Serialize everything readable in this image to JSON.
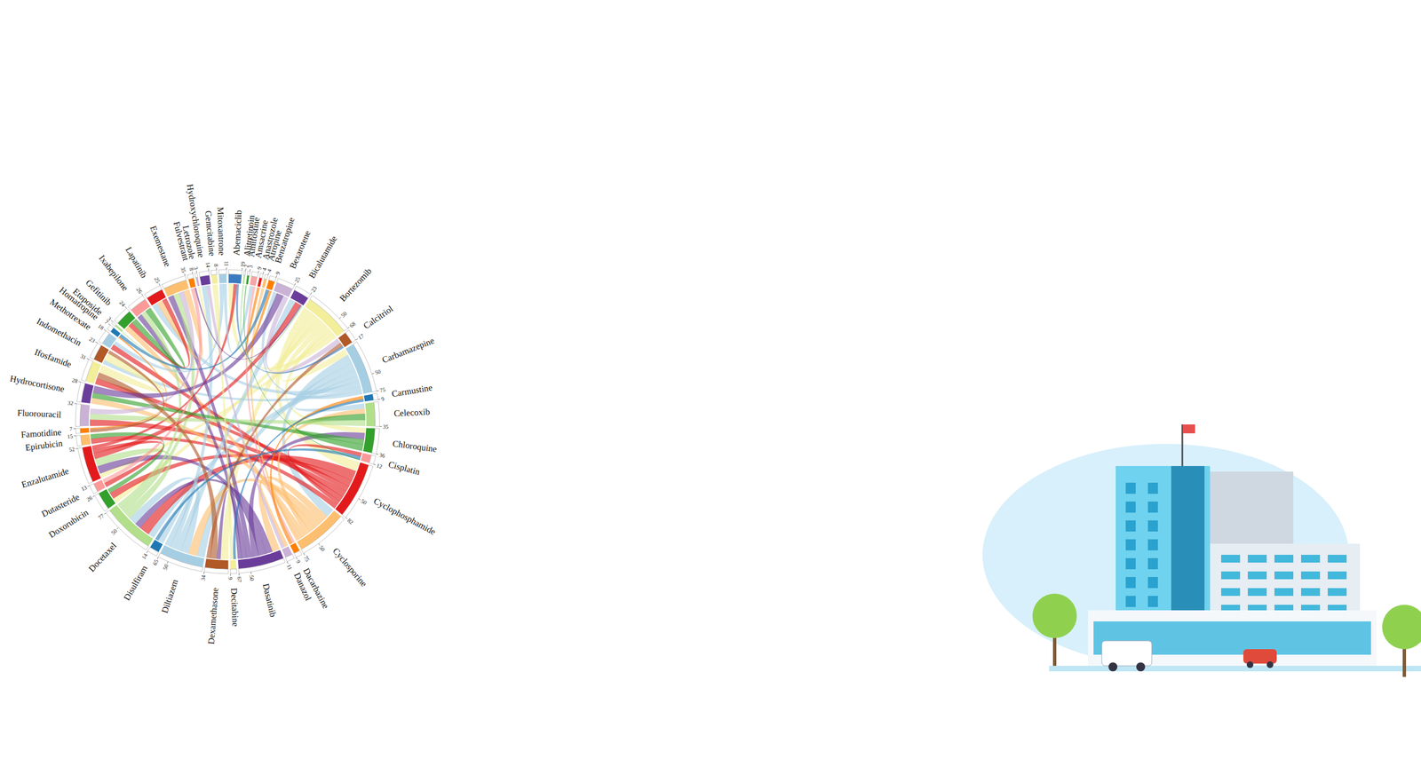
{
  "chart_data": {
    "type": "chord",
    "groups": [
      {
        "name": "Abemaciclib",
        "value": 19,
        "color": "#3a7bc0",
        "ticks": [
          19
        ]
      },
      {
        "name": "Alitretinoin",
        "value": 2,
        "color": "#b0dc9c",
        "ticks": [
          2
        ]
      },
      {
        "name": "Amifostine",
        "value": 3,
        "color": "#33a02c",
        "ticks": [
          3
        ]
      },
      {
        "name": "Amsacrine",
        "value": 9,
        "color": "#f4a6a6",
        "ticks": [
          9
        ]
      },
      {
        "name": "Anastrozole",
        "value": 4,
        "color": "#e31a1c",
        "ticks": [
          4
        ]
      },
      {
        "name": "Atropine",
        "value": 4,
        "color": "#fdbf6f",
        "ticks": [
          4
        ]
      },
      {
        "name": "Benzatropine",
        "value": 9,
        "color": "#ff7f00",
        "ticks": [
          9
        ]
      },
      {
        "name": "Bexarotene",
        "value": 25,
        "color": "#cab2d6",
        "ticks": [
          25
        ]
      },
      {
        "name": "Bicalutamide",
        "value": 23,
        "color": "#6a3d9a",
        "ticks": [
          23
        ]
      },
      {
        "name": "Bortezomib",
        "value": 68,
        "color": "#f2ee9a",
        "ticks": [
          50,
          68
        ]
      },
      {
        "name": "Calcitriol",
        "value": 17,
        "color": "#b15928",
        "ticks": [
          17
        ]
      },
      {
        "name": "Carbamazepine",
        "value": 75,
        "color": "#a6cee3",
        "ticks": [
          50,
          75
        ]
      },
      {
        "name": "Carmustine",
        "value": 9,
        "color": "#1f78b4",
        "ticks": [
          9
        ]
      },
      {
        "name": "Celecoxib",
        "value": 35,
        "color": "#b2df8a",
        "ticks": [
          35
        ]
      },
      {
        "name": "Chloroquine",
        "value": 36,
        "color": "#33a02c",
        "ticks": [
          36
        ]
      },
      {
        "name": "Cisplatin",
        "value": 12,
        "color": "#fb9a99",
        "ticks": [
          12
        ]
      },
      {
        "name": "Cyclophosphamide",
        "value": 82,
        "color": "#e31a1c",
        "ticks": [
          50,
          82
        ]
      },
      {
        "name": "Cyclosporine",
        "value": 75,
        "color": "#fdbf6f",
        "ticks": [
          50,
          75
        ]
      },
      {
        "name": "Dacarbazine",
        "value": 9,
        "color": "#ff7f00",
        "ticks": [
          9
        ]
      },
      {
        "name": "Danazol",
        "value": 11,
        "color": "#cab2d6",
        "ticks": [
          11
        ]
      },
      {
        "name": "Dasatinib",
        "value": 67,
        "color": "#6a3d9a",
        "ticks": [
          50,
          67
        ]
      },
      {
        "name": "Decitabine",
        "value": 9,
        "color": "#f2ee9a",
        "ticks": [
          9
        ]
      },
      {
        "name": "Dexamethasone",
        "value": 34,
        "color": "#b15928",
        "ticks": [
          34
        ]
      },
      {
        "name": "Diltiazem",
        "value": 65,
        "color": "#a6cee3",
        "ticks": [
          50,
          65
        ]
      },
      {
        "name": "Disulfiram",
        "value": 14,
        "color": "#1f78b4",
        "ticks": [
          14
        ]
      },
      {
        "name": "Docetaxel",
        "value": 77,
        "color": "#b2df8a",
        "ticks": [
          50,
          77
        ]
      },
      {
        "name": "Doxorubicin",
        "value": 26,
        "color": "#33a02c",
        "ticks": [
          26
        ]
      },
      {
        "name": "Dutasteride",
        "value": 13,
        "color": "#fb9a99",
        "ticks": [
          13
        ]
      },
      {
        "name": "Enzalutamide",
        "value": 52,
        "color": "#e31a1c",
        "ticks": [
          52
        ]
      },
      {
        "name": "Epirubicin",
        "value": 15,
        "color": "#fdbf6f",
        "ticks": [
          15
        ]
      },
      {
        "name": "Famotidine",
        "value": 7,
        "color": "#ff7f00",
        "ticks": [
          7
        ]
      },
      {
        "name": "Fluorouracil",
        "value": 32,
        "color": "#cab2d6",
        "ticks": [
          32
        ]
      },
      {
        "name": "Hydrocortisone",
        "value": 28,
        "color": "#6a3d9a",
        "ticks": [
          28
        ]
      },
      {
        "name": "Ifosfamide",
        "value": 31,
        "color": "#f2ee9a",
        "ticks": [
          31
        ]
      },
      {
        "name": "Indomethacin",
        "value": 23,
        "color": "#b15928",
        "ticks": [
          23
        ]
      },
      {
        "name": "Methotrexate",
        "value": 18,
        "color": "#a6cee3",
        "ticks": [
          18
        ]
      },
      {
        "name": "Homatropine",
        "value": 7,
        "color": "#1f78b4",
        "ticks": [
          7
        ]
      },
      {
        "name": "Etoposide",
        "value": 3,
        "color": "#b2df8a",
        "ticks": [
          3
        ]
      },
      {
        "name": "Gefitinib",
        "value": 24,
        "color": "#33a02c",
        "ticks": [
          24
        ]
      },
      {
        "name": "Ixabepilone",
        "value": 26,
        "color": "#fb9a99",
        "ticks": [
          26
        ]
      },
      {
        "name": "Lapatinib",
        "value": 25,
        "color": "#e31a1c",
        "ticks": [
          25
        ]
      },
      {
        "name": "Exemestane",
        "value": 35,
        "color": "#fdbf6f",
        "ticks": [
          35
        ]
      },
      {
        "name": "Fulvestrant",
        "value": 8,
        "color": "#ff7f00",
        "ticks": [
          8
        ]
      },
      {
        "name": "Letrozole",
        "value": 3,
        "color": "#cab2d6",
        "ticks": [
          3
        ]
      },
      {
        "name": "Hydroxychloroquine",
        "value": 14,
        "color": "#6a3d9a",
        "ticks": [
          14
        ]
      },
      {
        "name": "Gemcitabine",
        "value": 8,
        "color": "#f2ee9a",
        "ticks": [
          8
        ]
      },
      {
        "name": "Mitoxantrone",
        "value": 11,
        "color": "#a6cee3",
        "ticks": [
          11
        ]
      }
    ],
    "links": [
      {
        "source": "Bortezomib",
        "target": "Cyclophosphamide",
        "value": 15
      },
      {
        "source": "Bortezomib",
        "target": "Dexamethasone",
        "value": 12
      },
      {
        "source": "Bortezomib",
        "target": "Doxorubicin",
        "value": 8
      },
      {
        "source": "Bortezomib",
        "target": "Carbamazepine",
        "value": 10
      },
      {
        "source": "Bortezomib",
        "target": "Chloroquine",
        "value": 8
      },
      {
        "source": "Bortezomib",
        "target": "Enzalutamide",
        "value": 7
      },
      {
        "source": "Bortezomib",
        "target": "Abemaciclib",
        "value": 8
      },
      {
        "source": "Carbamazepine",
        "target": "Cyclosporine",
        "value": 14
      },
      {
        "source": "Carbamazepine",
        "target": "Diltiazem",
        "value": 12
      },
      {
        "source": "Carbamazepine",
        "target": "Docetaxel",
        "value": 10
      },
      {
        "source": "Carbamazepine",
        "target": "Celecoxib",
        "value": 8
      },
      {
        "source": "Carbamazepine",
        "target": "Lapatinib",
        "value": 9
      },
      {
        "source": "Carbamazepine",
        "target": "Indomethacin",
        "value": 6
      },
      {
        "source": "Carbamazepine",
        "target": "Bexarotene",
        "value": 6
      },
      {
        "source": "Cyclophosphamide",
        "target": "Docetaxel",
        "value": 16
      },
      {
        "source": "Cyclophosphamide",
        "target": "Doxorubicin",
        "value": 10
      },
      {
        "source": "Cyclophosphamide",
        "target": "Ifosfamide",
        "value": 9
      },
      {
        "source": "Cyclophosphamide",
        "target": "Fluorouracil",
        "value": 10
      },
      {
        "source": "Cyclophosphamide",
        "target": "Methotrexate",
        "value": 8
      },
      {
        "source": "Cyclophosphamide",
        "target": "Cisplatin",
        "value": 6
      },
      {
        "source": "Cyclophosphamide",
        "target": "Epirubicin",
        "value": 8
      },
      {
        "source": "Cyclosporine",
        "target": "Dasatinib",
        "value": 12
      },
      {
        "source": "Cyclosporine",
        "target": "Diltiazem",
        "value": 14
      },
      {
        "source": "Cyclosporine",
        "target": "Hydrocortisone",
        "value": 9
      },
      {
        "source": "Cyclosporine",
        "target": "Celecoxib",
        "value": 8
      },
      {
        "source": "Cyclosporine",
        "target": "Gefitinib",
        "value": 8
      },
      {
        "source": "Cyclosporine",
        "target": "Danazol",
        "value": 6
      },
      {
        "source": "Cyclosporine",
        "target": "Atropine",
        "value": 4
      },
      {
        "source": "Dasatinib",
        "target": "Docetaxel",
        "value": 10
      },
      {
        "source": "Dasatinib",
        "target": "Enzalutamide",
        "value": 12
      },
      {
        "source": "Dasatinib",
        "target": "Chloroquine",
        "value": 10
      },
      {
        "source": "Dasatinib",
        "target": "Exemestane",
        "value": 9
      },
      {
        "source": "Dasatinib",
        "target": "Ixabepilone",
        "value": 8
      },
      {
        "source": "Dasatinib",
        "target": "Dexamethasone",
        "value": 6
      },
      {
        "source": "Diltiazem",
        "target": "Docetaxel",
        "value": 12
      },
      {
        "source": "Diltiazem",
        "target": "Bicalutamide",
        "value": 10
      },
      {
        "source": "Diltiazem",
        "target": "Hydroxychloroquine",
        "value": 8
      },
      {
        "source": "Diltiazem",
        "target": "Disulfiram",
        "value": 9
      },
      {
        "source": "Docetaxel",
        "target": "Enzalutamide",
        "value": 12
      },
      {
        "source": "Docetaxel",
        "target": "Exemestane",
        "value": 9
      },
      {
        "source": "Docetaxel",
        "target": "Ixabepilone",
        "value": 8
      },
      {
        "source": "Enzalutamide",
        "target": "Bicalutamide",
        "value": 9
      },
      {
        "source": "Enzalutamide",
        "target": "Dutasteride",
        "value": 7
      },
      {
        "source": "Enzalutamide",
        "target": "Abemaciclib",
        "value": 5
      },
      {
        "source": "Chloroquine",
        "target": "Hydrocortisone",
        "value": 8
      },
      {
        "source": "Chloroquine",
        "target": "Celecoxib",
        "value": 10
      },
      {
        "source": "Celecoxib",
        "target": "Fluorouracil",
        "value": 9
      },
      {
        "source": "Fluorouracil",
        "target": "Exemestane",
        "value": 8
      },
      {
        "source": "Exemestane",
        "target": "Lapatinib",
        "value": 9
      },
      {
        "source": "Lapatinib",
        "target": "Gefitinib",
        "value": 7
      },
      {
        "source": "Gefitinib",
        "target": "Ixabepilone",
        "value": 9
      },
      {
        "source": "Dexamethasone",
        "target": "Ifosfamide",
        "value": 10
      },
      {
        "source": "Ifosfamide",
        "target": "Indomethacin",
        "value": 12
      },
      {
        "source": "Hydrocortisone",
        "target": "Bexarotene",
        "value": 11
      },
      {
        "source": "Bexarotene",
        "target": "Calcitriol",
        "value": 8
      },
      {
        "source": "Calcitriol",
        "target": "Dexamethasone",
        "value": 6
      },
      {
        "source": "Doxorubicin",
        "target": "Epirubicin",
        "value": 7
      },
      {
        "source": "Methotrexate",
        "target": "Mitoxantrone",
        "value": 6
      },
      {
        "source": "Mitoxantrone",
        "target": "Amsacrine",
        "value": 5
      },
      {
        "source": "Amsacrine",
        "target": "Dacarbazine",
        "value": 4
      },
      {
        "source": "Dacarbazine",
        "target": "Carmustine",
        "value": 5
      },
      {
        "source": "Carmustine",
        "target": "Decitabine",
        "value": 4
      },
      {
        "source": "Decitabine",
        "target": "Gemcitabine",
        "value": 5
      },
      {
        "source": "Gemcitabine",
        "target": "Letrozole",
        "value": 3
      },
      {
        "source": "Indomethacin",
        "target": "Famotidine",
        "value": 5
      },
      {
        "source": "Famotidine",
        "target": "Homatropine",
        "value": 2
      },
      {
        "source": "Homatropine",
        "target": "Benzatropine",
        "value": 5
      },
      {
        "source": "Benzatropine",
        "target": "Anastrozole",
        "value": 4
      },
      {
        "source": "Disulfiram",
        "target": "Cisplatin",
        "value": 5
      },
      {
        "source": "Dutasteride",
        "target": "Fulvestrant",
        "value": 6
      },
      {
        "source": "Danazol",
        "target": "Hydroxychloroquine",
        "value": 5
      },
      {
        "source": "Abemaciclib",
        "target": "Calcitriol",
        "value": 3
      },
      {
        "source": "Bicalutamide",
        "target": "Fulvestrant",
        "value": 2
      },
      {
        "source": "Etoposide",
        "target": "Ixabepilone",
        "value": 1
      },
      {
        "source": "Amifostine",
        "target": "Cisplatin",
        "value": 1
      },
      {
        "source": "Alitretinoin",
        "target": "Bicalutamide",
        "value": 2
      }
    ]
  }
}
